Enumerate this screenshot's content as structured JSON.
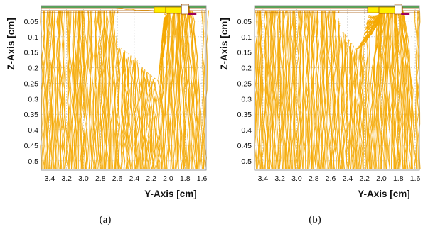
{
  "panels": [
    {
      "id": "a",
      "caption": "(a)",
      "xlabel": "Y-Axis [cm]",
      "ylabel": "Z-Axis [cm]",
      "x_ticks": [
        "3.4",
        "3.2",
        "3.0",
        "2.8",
        "2.6",
        "2.4",
        "2.2",
        "2.0",
        "1.8",
        "1.6"
      ],
      "y_ticks": [
        "0.05",
        "0.1",
        "0.15",
        "0.2",
        "0.25",
        "0.3",
        "0.35",
        "0.4",
        "0.45",
        "0.5"
      ]
    },
    {
      "id": "b",
      "caption": "(b)",
      "xlabel": "Y-Axis [cm]",
      "ylabel": "Z-Axis [cm]",
      "x_ticks": [
        "3.4",
        "3.2",
        "3.0",
        "2.8",
        "2.6",
        "2.4",
        "2.2",
        "2.0",
        "1.8",
        "1.6"
      ],
      "y_ticks": [
        "0.05",
        "0.1",
        "0.15",
        "0.2",
        "0.25",
        "0.3",
        "0.35",
        "0.4",
        "0.45",
        "0.5"
      ]
    }
  ],
  "colors": {
    "track": "#f5a800",
    "grid": "#b8b8b8",
    "electrode": "#ffee00",
    "electrode_edge": "#a05000",
    "implant": "#a0005a",
    "surface_green": "#5aa05a"
  },
  "chart_data": [
    {
      "type": "line",
      "description_of_marks": "charge-carrier drift tracks",
      "x_axis": {
        "label": "Y-Axis [cm]",
        "range": [
          3.5,
          1.55
        ],
        "reversed": true,
        "ticks": [
          3.4,
          3.2,
          3.0,
          2.8,
          2.6,
          2.4,
          2.2,
          2.0,
          1.8,
          1.6
        ]
      },
      "y_axis": {
        "label": "Z-Axis [cm]",
        "range": [
          0.0,
          0.53
        ],
        "reversed": true,
        "ticks": [
          0.05,
          0.1,
          0.15,
          0.2,
          0.25,
          0.3,
          0.35,
          0.4,
          0.45,
          0.5
        ]
      },
      "grid": true,
      "electrode_y_range": [
        2.03,
        1.75
      ],
      "empty_region_boundary": [
        [
          2.62,
          0.0
        ],
        [
          2.6,
          0.13
        ],
        [
          2.48,
          0.15
        ],
        [
          2.38,
          0.17
        ],
        [
          2.3,
          0.2
        ],
        [
          2.22,
          0.22
        ],
        [
          2.12,
          0.24
        ],
        [
          2.05,
          0.03
        ]
      ]
    },
    {
      "type": "line",
      "description_of_marks": "charge-carrier drift tracks",
      "x_axis": {
        "label": "Y-Axis [cm]",
        "range": [
          3.5,
          1.55
        ],
        "reversed": true,
        "ticks": [
          3.4,
          3.2,
          3.0,
          2.8,
          2.6,
          2.4,
          2.2,
          2.0,
          1.8,
          1.6
        ]
      },
      "y_axis": {
        "label": "Z-Axis [cm]",
        "range": [
          0.0,
          0.53
        ],
        "reversed": true,
        "ticks": [
          0.05,
          0.1,
          0.15,
          0.2,
          0.25,
          0.3,
          0.35,
          0.4,
          0.45,
          0.5
        ]
      },
      "grid": true,
      "electrode_y_range": [
        2.03,
        1.75
      ],
      "empty_region_boundary": [
        [
          2.52,
          0.03
        ],
        [
          2.46,
          0.08
        ],
        [
          2.38,
          0.11
        ],
        [
          2.3,
          0.14
        ],
        [
          2.22,
          0.11
        ],
        [
          2.17,
          0.05
        ],
        [
          2.15,
          0.03
        ]
      ]
    }
  ]
}
